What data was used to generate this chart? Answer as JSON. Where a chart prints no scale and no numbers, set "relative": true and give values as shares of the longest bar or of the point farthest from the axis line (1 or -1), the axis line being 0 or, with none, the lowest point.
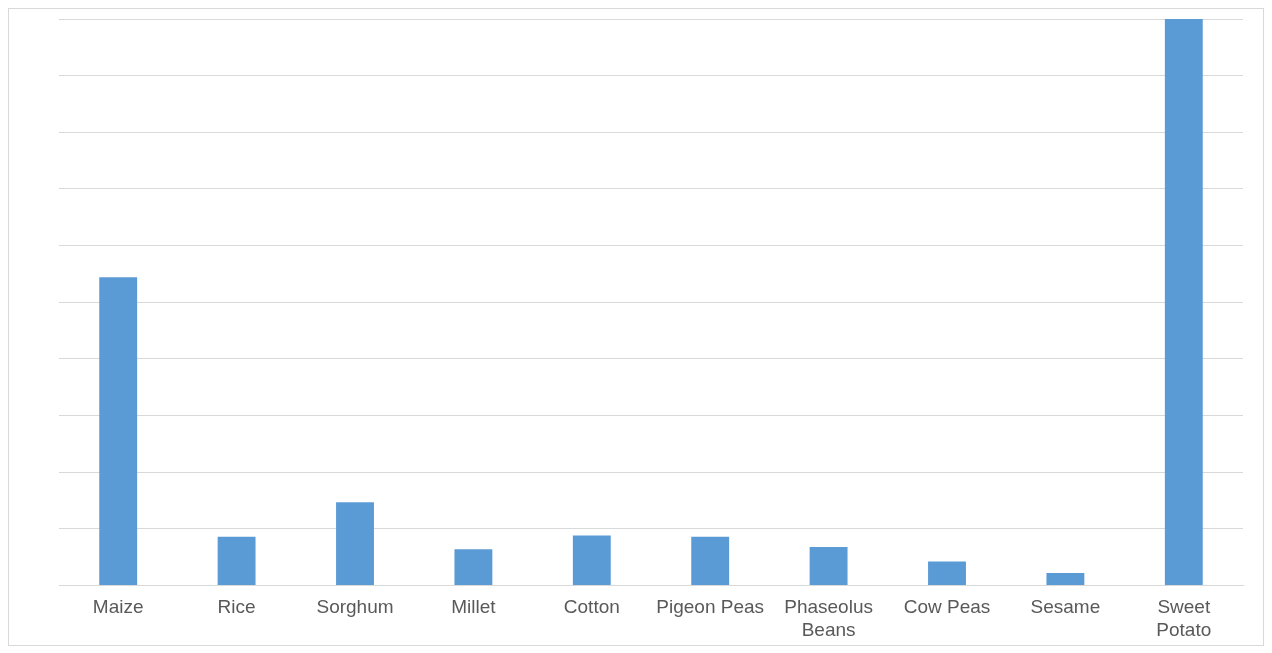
{
  "chart_data": {
    "type": "bar",
    "relative": true,
    "grid": "y",
    "categories": [
      "Maize",
      "Rice",
      "Sorghum",
      "Millet",
      "Cotton",
      "Pigeon Peas",
      "Phaseolus Beans",
      "Cow Peas",
      "Sesame",
      "Sweet Potato"
    ],
    "values": [
      0.544,
      0.086,
      0.147,
      0.064,
      0.088,
      0.086,
      0.068,
      0.042,
      0.022,
      1
    ],
    "color": "#5b9bd5"
  }
}
